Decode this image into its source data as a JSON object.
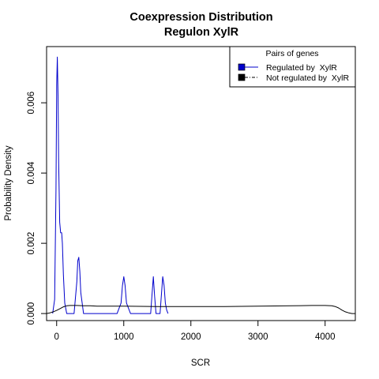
{
  "chart_data": {
    "type": "line",
    "title": "Coexpression Distribution",
    "subtitle": "Regulon XylR",
    "xlabel": "SCR",
    "ylabel": "Probability Density",
    "xlim": [
      -150,
      4450
    ],
    "ylim": [
      -0.0002,
      0.0076
    ],
    "x_ticks": [
      0,
      1000,
      2000,
      3000,
      4000
    ],
    "x_tick_labels": [
      "0",
      "1000",
      "2000",
      "3000",
      "4000"
    ],
    "y_ticks": [
      0.0,
      0.002,
      0.004,
      0.006
    ],
    "y_tick_labels": [
      "0.000",
      "0.002",
      "0.004",
      "0.006"
    ],
    "grid": false,
    "legend": {
      "title": "Pairs of genes",
      "placement": "top-right",
      "entries": [
        "Regulated by  XylR",
        "Not regulated by  XylR"
      ]
    },
    "series": [
      {
        "name": "Regulated by  XylR",
        "color": "#0000cc",
        "line_style": "solid",
        "x": [
          -60,
          -30,
          -10,
          0,
          10,
          20,
          30,
          45,
          60,
          75,
          85,
          100,
          120,
          150,
          200,
          260,
          300,
          315,
          330,
          345,
          360,
          400,
          500,
          900,
          960,
          980,
          1000,
          1020,
          1040,
          1100,
          1350,
          1400,
          1420,
          1440,
          1460,
          1480,
          1540,
          1560,
          1580,
          1600,
          1620,
          1640,
          1660
        ],
        "y": [
          0.0,
          0.0004,
          0.0035,
          0.0065,
          0.0073,
          0.0062,
          0.0043,
          0.0026,
          0.0023,
          0.0023,
          0.002,
          0.0011,
          0.0003,
          0.0,
          0.0,
          0.0,
          0.0009,
          0.0015,
          0.0016,
          0.0012,
          0.0006,
          0.0,
          0.0,
          0.0,
          0.0003,
          0.0008,
          0.00105,
          0.0008,
          0.0003,
          0.0,
          0.0,
          0.0,
          0.0005,
          0.00105,
          0.0005,
          0.0,
          0.0,
          0.0005,
          0.00105,
          0.0008,
          0.0003,
          0.0001,
          0.0
        ]
      },
      {
        "name": "Not regulated by  XylR",
        "color": "#000000",
        "line_style": "solid",
        "x": [
          -150,
          -100,
          -50,
          0,
          50,
          100,
          150,
          200,
          250,
          300,
          400,
          500,
          600,
          800,
          1000,
          1500,
          2000,
          2500,
          3000,
          3500,
          3800,
          4000,
          4100,
          4150,
          4200,
          4250,
          4300,
          4350,
          4400,
          4450
        ],
        "y": [
          0.0,
          2e-05,
          5e-05,
          9e-05,
          0.00014,
          0.00019,
          0.00022,
          0.00023,
          0.00023,
          0.00023,
          0.00022,
          0.00022,
          0.00021,
          0.00021,
          0.00021,
          0.0002,
          0.0002,
          0.0002,
          0.00021,
          0.00022,
          0.00023,
          0.00023,
          0.00022,
          0.0002,
          0.00016,
          0.0001,
          5e-05,
          2e-05,
          0.0,
          0.0
        ]
      }
    ]
  }
}
